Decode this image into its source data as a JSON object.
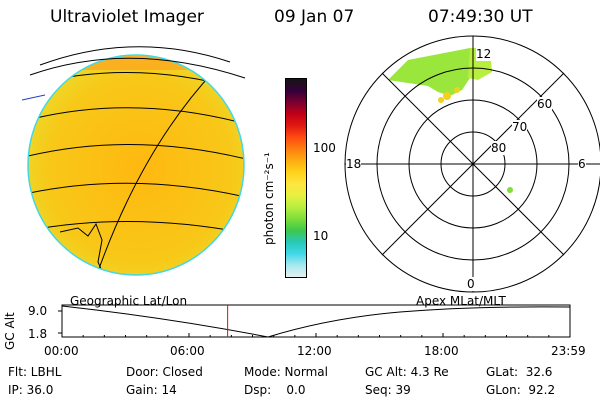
{
  "header": {
    "instrument": "Ultraviolet Imager",
    "date": "09 Jan 07",
    "time": "07:49:30 UT"
  },
  "colorbar": {
    "unit_label": "photon cm⁻²s⁻¹",
    "tick_labels": [
      "100",
      "10"
    ],
    "colors_top_to_bottom": [
      "#151515",
      "#33003a",
      "#7a0030",
      "#c00018",
      "#e01810",
      "#ff4a10",
      "#ff7d10",
      "#ffad10",
      "#ffd21a",
      "#ffe640",
      "#e8f040",
      "#b8ee40",
      "#7ede3a",
      "#3ec84a",
      "#28c8b8",
      "#40d8e8",
      "#a8e8f0",
      "#e6f0f2"
    ]
  },
  "polar_plot": {
    "mlt_labels": {
      "top": "12",
      "left": "18",
      "right": "6",
      "bottom": "0"
    },
    "lat_labels": [
      "60",
      "70",
      "80"
    ]
  },
  "timeline": {
    "left_label": "Geographic Lat/Lon",
    "right_label": "Apex MLat/MLT",
    "yaxis_label": "GC Alt",
    "y_ticks": [
      "9.0",
      "1.8"
    ],
    "x_ticks": [
      "00:00",
      "06:00",
      "12:00",
      "18:00",
      "23:59"
    ],
    "marker_time": "07:49:30"
  },
  "footer": {
    "row1": [
      "Flt: LBHL",
      "Door: Closed",
      "Mode: Normal",
      "GC Alt: 4.3 Re",
      "GLat:  32.6"
    ],
    "row2": [
      "IP: 36.0",
      "Gain: 14",
      "Dsp:    0.0",
      "Seq: 39",
      "GLon:  92.2"
    ]
  },
  "colors": {
    "disk_fill": "#f8c010",
    "aurora_green": "#9ae63c",
    "marker_red": "#ff0000"
  }
}
